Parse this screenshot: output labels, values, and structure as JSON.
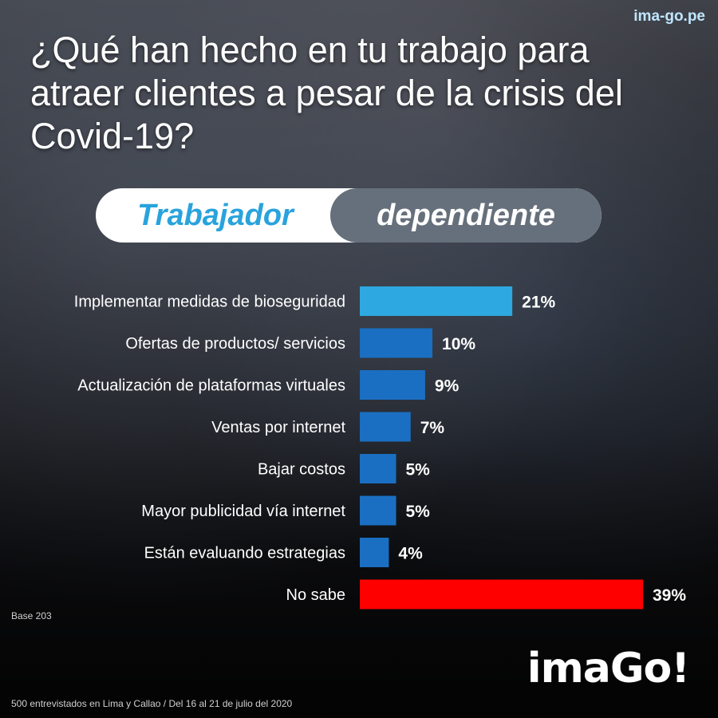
{
  "site": "ima-go.pe",
  "title": "¿Qué han hecho en tu trabajo para atraer clientes a pesar de la crisis del Covid-19?",
  "segment": {
    "left": "Trabajador",
    "right": "dependiente"
  },
  "base": "Base 203",
  "footer": "500 entrevistados en Lima y Callao   /   Del 16 al 21 de julio del 2020",
  "logo": "imaGo!",
  "colors": {
    "highlight": "#2ea8e0",
    "bar": "#1a6fc2",
    "alert": "#ff0000"
  },
  "chart_data": {
    "type": "bar",
    "orientation": "horizontal",
    "categories": [
      "Implementar medidas de bioseguridad",
      "Ofertas de productos/ servicios",
      "Actualización de plataformas virtuales",
      "Ventas por internet",
      "Bajar costos",
      "Mayor publicidad vía internet",
      "Están evaluando estrategias",
      "No sabe"
    ],
    "values": [
      21,
      10,
      9,
      7,
      5,
      5,
      4,
      39
    ],
    "value_labels": [
      "21%",
      "10%",
      "9%",
      "7%",
      "5%",
      "5%",
      "4%",
      "39%"
    ],
    "bar_colors": [
      "#2ea8e0",
      "#1a6fc2",
      "#1a6fc2",
      "#1a6fc2",
      "#1a6fc2",
      "#1a6fc2",
      "#1a6fc2",
      "#ff0000"
    ],
    "unit": "%",
    "xlim": [
      0,
      39
    ]
  }
}
